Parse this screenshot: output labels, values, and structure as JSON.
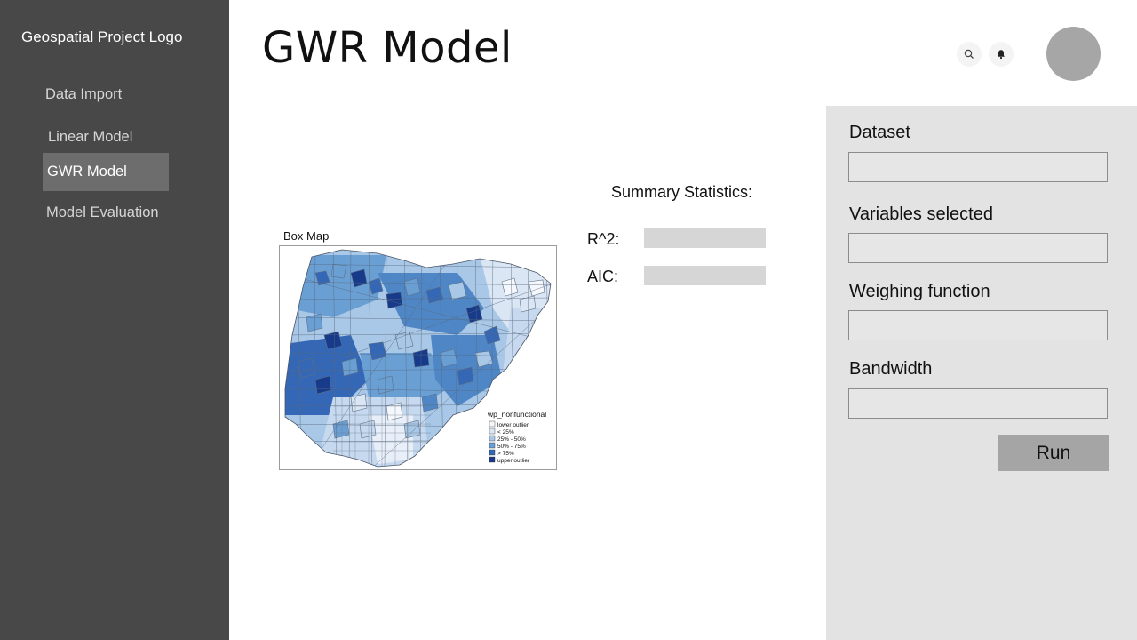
{
  "sidebar": {
    "logo": "Geospatial Project Logo",
    "items": [
      {
        "label": "Data Import",
        "active": false
      },
      {
        "label": "Linear Model",
        "active": false
      },
      {
        "label": "GWR Model",
        "active": true
      },
      {
        "label": "Model Evaluation",
        "active": false
      }
    ]
  },
  "header": {
    "title": "GWR Model",
    "icons": [
      "search-icon",
      "bell-icon"
    ]
  },
  "map": {
    "caption": "Box Map",
    "legend_title": "wp_nonfunctional",
    "legend_items": [
      {
        "label": "lower outlier",
        "color": "#f4f7fb"
      },
      {
        "label": "< 25%",
        "color": "#dbe6f4"
      },
      {
        "label": "25% - 50%",
        "color": "#a9c7e6"
      },
      {
        "label": "50% - 75%",
        "color": "#6a9fd4"
      },
      {
        "label": "> 75%",
        "color": "#3467b5"
      },
      {
        "label": "upper outlier",
        "color": "#173a8a"
      }
    ]
  },
  "summary": {
    "title": "Summary Statistics:",
    "r2_label": "R^2:",
    "aic_label": "AIC:"
  },
  "panel": {
    "dataset_label": "Dataset",
    "variables_label": "Variables selected",
    "weighing_label": "Weighing function",
    "bandwidth_label": "Bandwidth",
    "run_label": "Run"
  }
}
